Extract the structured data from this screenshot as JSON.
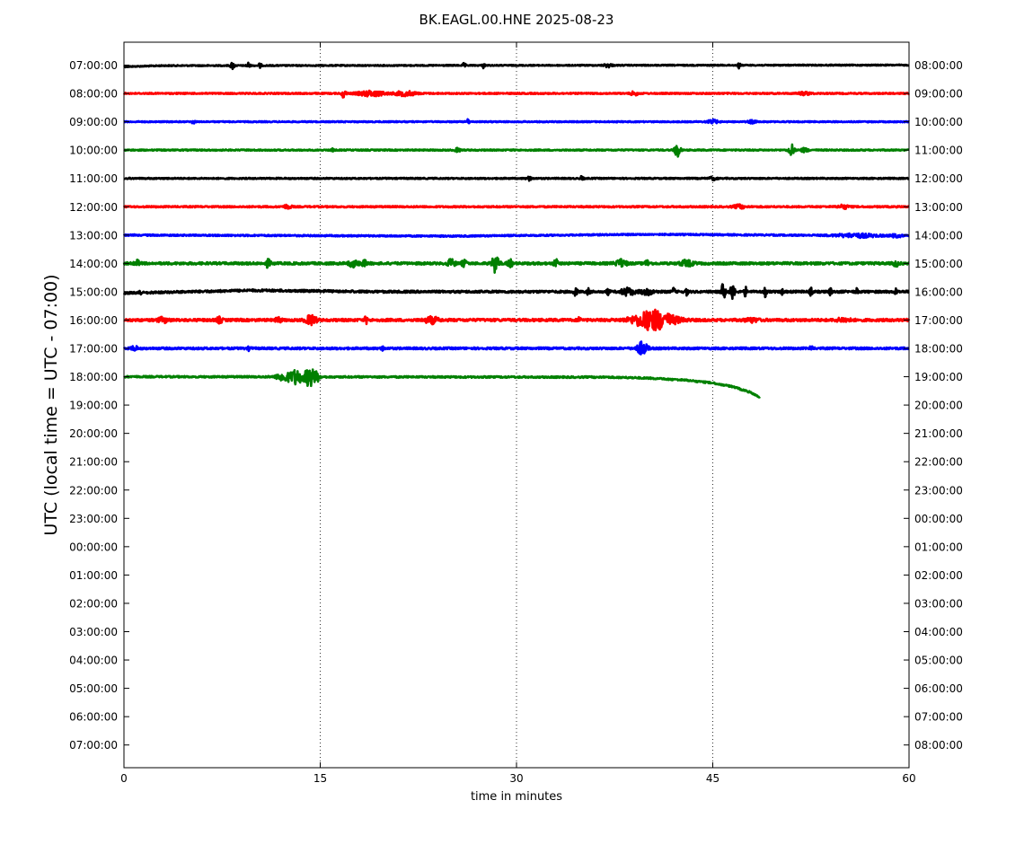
{
  "chart_data": {
    "type": "line",
    "title": "BK.EAGL.00.HNE 2025-08-23",
    "xlabel": "time in minutes",
    "ylabel": "UTC (local time = UTC - 07:00)",
    "xlim": [
      0,
      60
    ],
    "x_ticks": [
      "0",
      "15",
      "30",
      "45",
      "60"
    ],
    "x_tick_values": [
      0,
      15,
      30,
      45,
      60
    ],
    "vertical_grid": "dotted at 15, 30, 45",
    "left_tick_labels": [
      "07:00:00",
      "08:00:00",
      "09:00:00",
      "10:00:00",
      "11:00:00",
      "12:00:00",
      "13:00:00",
      "14:00:00",
      "15:00:00",
      "16:00:00",
      "17:00:00",
      "18:00:00",
      "19:00:00",
      "20:00:00",
      "21:00:00",
      "22:00:00",
      "23:00:00",
      "00:00:00",
      "01:00:00",
      "02:00:00",
      "03:00:00",
      "04:00:00",
      "05:00:00",
      "06:00:00",
      "07:00:00"
    ],
    "right_tick_labels": [
      "08:00:00",
      "09:00:00",
      "10:00:00",
      "11:00:00",
      "12:00:00",
      "13:00:00",
      "14:00:00",
      "15:00:00",
      "16:00:00",
      "17:00:00",
      "18:00:00",
      "19:00:00",
      "20:00:00",
      "21:00:00",
      "22:00:00",
      "23:00:00",
      "00:00:00",
      "01:00:00",
      "02:00:00",
      "03:00:00",
      "04:00:00",
      "05:00:00",
      "06:00:00",
      "07:00:00",
      "08:00:00"
    ],
    "colors": [
      "#000000",
      "#ff0000",
      "#0000ff",
      "#008000"
    ],
    "traces": [
      {
        "row": 0,
        "color": "#000000",
        "x_end": 60,
        "noise": 0.6,
        "drift": [
          [
            0,
            1.8
          ],
          [
            3,
            0.6
          ],
          [
            60,
            0
          ]
        ],
        "bursts": [
          [
            8.3,
            0.15,
            4
          ],
          [
            9.5,
            0.12,
            3.5
          ],
          [
            10.4,
            0.1,
            3
          ],
          [
            26,
            0.1,
            3
          ],
          [
            27.5,
            0.1,
            3
          ],
          [
            37,
            0.3,
            2
          ],
          [
            47,
            0.1,
            3
          ]
        ]
      },
      {
        "row": 1,
        "color": "#ff0000",
        "x_end": 60,
        "noise": 0.7,
        "drift": [],
        "bursts": [
          [
            16.8,
            0.15,
            5
          ],
          [
            18.9,
            1.0,
            3
          ],
          [
            21.5,
            0.8,
            2.5
          ],
          [
            39,
            0.3,
            2
          ],
          [
            52,
            0.5,
            1.5
          ]
        ]
      },
      {
        "row": 2,
        "color": "#0000ff",
        "x_end": 60,
        "noise": 0.6,
        "drift": [],
        "bursts": [
          [
            5.3,
            0.1,
            3
          ],
          [
            26.3,
            0.1,
            3
          ],
          [
            45,
            0.4,
            2
          ],
          [
            48,
            0.3,
            1.5
          ]
        ]
      },
      {
        "row": 3,
        "color": "#008000",
        "x_end": 60,
        "noise": 0.7,
        "drift": [],
        "bursts": [
          [
            15.9,
            0.1,
            2
          ],
          [
            25.5,
            0.2,
            2
          ],
          [
            42.3,
            0.2,
            9
          ],
          [
            51,
            0.2,
            7
          ],
          [
            52,
            0.3,
            2
          ]
        ]
      },
      {
        "row": 4,
        "color": "#000000",
        "x_end": 60,
        "noise": 0.7,
        "drift": [],
        "bursts": [
          [
            31,
            0.2,
            2
          ],
          [
            35,
            0.1,
            3
          ],
          [
            45,
            0.3,
            1.5
          ]
        ]
      },
      {
        "row": 5,
        "color": "#ff0000",
        "x_end": 60,
        "noise": 0.8,
        "drift": [],
        "bursts": [
          [
            12.5,
            0.3,
            2
          ],
          [
            47,
            0.4,
            2
          ],
          [
            55,
            0.4,
            2
          ]
        ]
      },
      {
        "row": 6,
        "color": "#0000ff",
        "x_end": 60,
        "noise": 0.8,
        "drift": [
          [
            0,
            0
          ],
          [
            25,
            1.2
          ],
          [
            40,
            -0.8
          ],
          [
            60,
            0.8
          ]
        ],
        "bursts": [
          [
            56,
            1.5,
            2
          ],
          [
            59,
            0.4,
            1.5
          ]
        ]
      },
      {
        "row": 7,
        "color": "#008000",
        "x_end": 60,
        "noise": 1.3,
        "drift": [],
        "bursts": [
          [
            1.0,
            0.2,
            3
          ],
          [
            11,
            0.2,
            4
          ],
          [
            17.5,
            0.3,
            4
          ],
          [
            18.3,
            0.3,
            3
          ],
          [
            25,
            0.3,
            4
          ],
          [
            26,
            0.2,
            3
          ],
          [
            28.4,
            0.25,
            10
          ],
          [
            29.5,
            0.2,
            4
          ],
          [
            33,
            0.15,
            5
          ],
          [
            38,
            0.4,
            4
          ],
          [
            40,
            0.2,
            3
          ],
          [
            43,
            0.5,
            3
          ],
          [
            59,
            0.2,
            3
          ]
        ]
      },
      {
        "row": 8,
        "color": "#000000",
        "x_end": 60,
        "noise": 1.2,
        "drift": [
          [
            0,
            1.5
          ],
          [
            10,
            -1.5
          ],
          [
            20,
            0
          ],
          [
            60,
            0
          ]
        ],
        "bursts": [
          [
            1.2,
            0.1,
            3
          ],
          [
            34.5,
            0.15,
            4
          ],
          [
            35.5,
            0.1,
            4
          ],
          [
            37,
            0.1,
            4
          ],
          [
            38.5,
            0.5,
            4
          ],
          [
            40,
            0.5,
            3
          ],
          [
            42,
            0.1,
            4
          ],
          [
            43,
            0.1,
            4
          ],
          [
            45.8,
            0.15,
            9
          ],
          [
            46.5,
            0.15,
            11
          ],
          [
            47.5,
            0.1,
            5
          ],
          [
            49,
            0.1,
            5
          ],
          [
            50.3,
            0.1,
            3
          ],
          [
            52.5,
            0.1,
            4
          ],
          [
            54,
            0.1,
            4
          ],
          [
            56,
            0.1,
            3
          ],
          [
            59,
            0.1,
            3
          ]
        ]
      },
      {
        "row": 9,
        "color": "#ff0000",
        "x_end": 60,
        "noise": 1.4,
        "drift": [],
        "bursts": [
          [
            3,
            0.4,
            2.5
          ],
          [
            7.3,
            0.2,
            3
          ],
          [
            11.8,
            0.2,
            3
          ],
          [
            14.3,
            0.4,
            5
          ],
          [
            18.5,
            0.1,
            4
          ],
          [
            23.5,
            0.5,
            3.5
          ],
          [
            34.8,
            0.1,
            4
          ],
          [
            40.5,
            1.5,
            11
          ],
          [
            48,
            0.5,
            2
          ],
          [
            55,
            0.5,
            2
          ]
        ]
      },
      {
        "row": 10,
        "color": "#0000ff",
        "x_end": 60,
        "noise": 1.1,
        "drift": [],
        "bursts": [
          [
            0.8,
            0.2,
            3
          ],
          [
            9.6,
            0.1,
            3
          ],
          [
            19.8,
            0.1,
            3
          ],
          [
            39.6,
            0.4,
            7
          ],
          [
            52.5,
            0.1,
            3
          ]
        ]
      },
      {
        "row": 11,
        "color": "#008000",
        "x_end": 48.6,
        "noise": 0.9,
        "drift": [
          [
            0,
            0
          ],
          [
            37,
            0.5
          ],
          [
            40,
            1.5
          ],
          [
            43,
            4
          ],
          [
            45,
            7
          ],
          [
            46.5,
            11
          ],
          [
            47.8,
            17
          ],
          [
            48.6,
            23
          ]
        ],
        "bursts": [
          [
            12.3,
            0.6,
            5
          ],
          [
            13.2,
            0.4,
            8
          ],
          [
            14.2,
            0.4,
            11
          ],
          [
            14.8,
            0.2,
            4
          ]
        ]
      }
    ]
  }
}
